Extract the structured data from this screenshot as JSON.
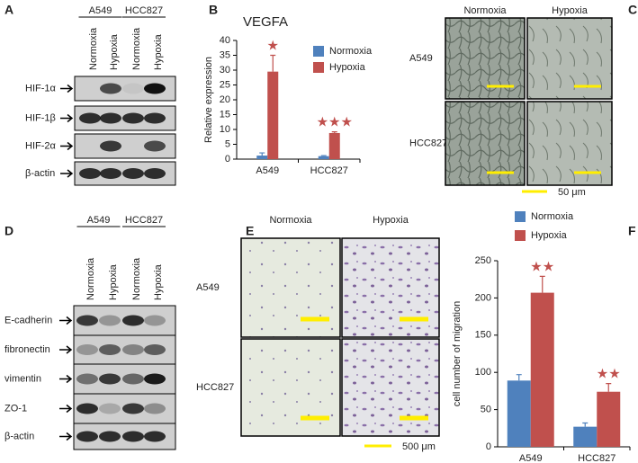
{
  "panel_labels": [
    "A",
    "B",
    "C",
    "D",
    "E",
    "F"
  ],
  "blot_a": {
    "cell_lines": [
      "A549",
      "HCC827"
    ],
    "conditions": [
      "Normoxia",
      "Hypoxia",
      "Normoxia",
      "Hypoxia"
    ],
    "proteins": [
      "HIF-1α",
      "HIF-1β",
      "HIF-2α",
      "β-actin"
    ]
  },
  "images_c": {
    "columns": [
      "Normoxia",
      "Hypoxia"
    ],
    "rows": [
      "A549",
      "HCC827"
    ],
    "scale_bar": "50 μm"
  },
  "blot_d": {
    "cell_lines": [
      "A549",
      "HCC827"
    ],
    "conditions": [
      "Normoxia",
      "Hypoxia",
      "Normoxia",
      "Hypoxia"
    ],
    "proteins": [
      "E-cadherin",
      "fibronectin",
      "vimentin",
      "ZO-1",
      "β-actin"
    ]
  },
  "images_e": {
    "columns": [
      "Normoxia",
      "Hypoxia"
    ],
    "rows": [
      "A549",
      "HCC827"
    ],
    "scale_bar": "500 μm"
  },
  "chart_data": [
    {
      "type": "bar",
      "title": "VEGFA",
      "y_label": "Relative expression",
      "categories": [
        "A549",
        "HCC827"
      ],
      "series": [
        {
          "name": "Normoxia",
          "color": "#4f81bd",
          "values": [
            1.2,
            1.0
          ],
          "errors": [
            0.9,
            0.2
          ]
        },
        {
          "name": "Hypoxia",
          "color": "#c0504d",
          "values": [
            29.5,
            8.8
          ],
          "errors": [
            5.5,
            0.4
          ]
        }
      ],
      "annotations": [
        "★",
        "★★★"
      ],
      "ylim": [
        0,
        40
      ],
      "yticks": [
        0,
        5,
        10,
        15,
        20,
        25,
        30,
        35,
        40
      ]
    },
    {
      "type": "bar",
      "y_label": "cell number of migration",
      "categories": [
        "A549",
        "HCC827"
      ],
      "series": [
        {
          "name": "Normoxia",
          "color": "#4f81bd",
          "values": [
            89,
            27
          ],
          "errors": [
            8,
            5
          ]
        },
        {
          "name": "Hypoxia",
          "color": "#c0504d",
          "values": [
            207,
            74
          ],
          "errors": [
            22,
            11
          ]
        }
      ],
      "annotations": [
        "★★",
        "★★"
      ],
      "ylim": [
        0,
        250
      ],
      "yticks": [
        0,
        50,
        100,
        150,
        200,
        250
      ]
    }
  ]
}
